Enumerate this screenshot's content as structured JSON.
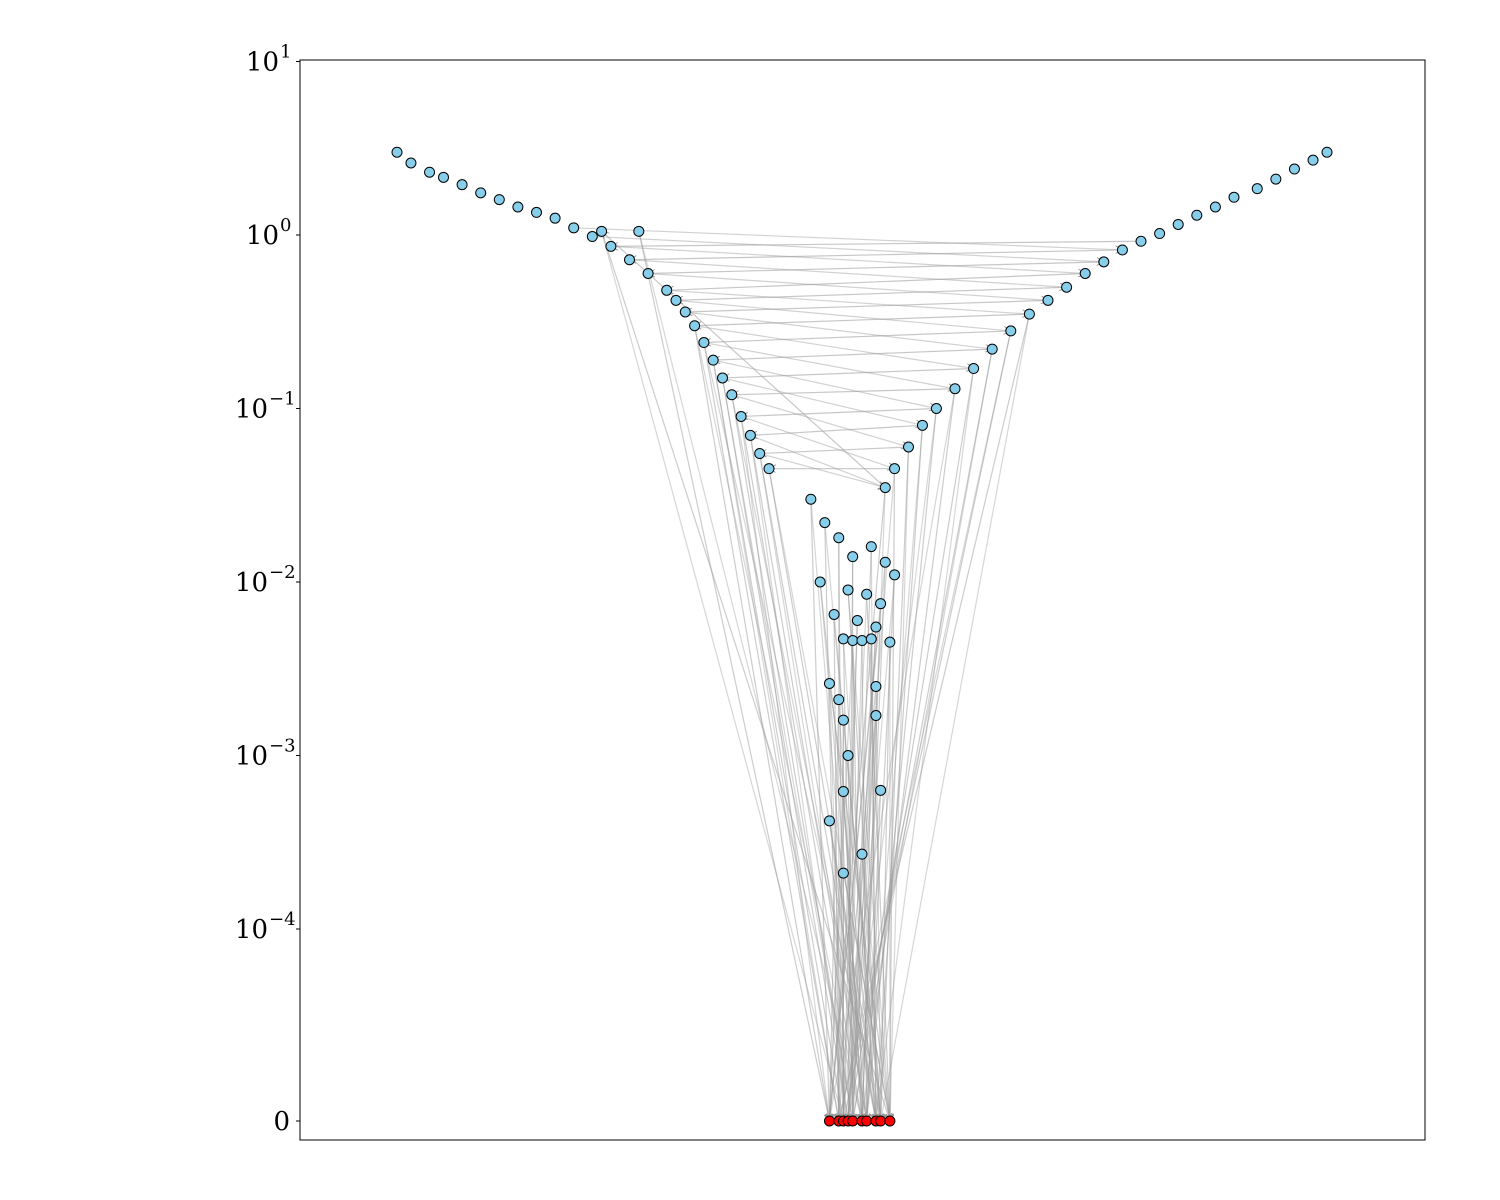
{
  "chart_data": {
    "type": "scatter",
    "title": "",
    "xlabel": "",
    "ylabel": "",
    "yscale": "symlog",
    "ylim": [
      0,
      10
    ],
    "y_ticks": [
      {
        "value": 10,
        "base": "10",
        "exp": "1"
      },
      {
        "value": 1,
        "base": "10",
        "exp": "0"
      },
      {
        "value": 0.1,
        "base": "10",
        "exp": "−1"
      },
      {
        "value": 0.01,
        "base": "10",
        "exp": "−2"
      },
      {
        "value": 0.001,
        "base": "10",
        "exp": "−3"
      },
      {
        "value": 0.0001,
        "base": "10",
        "exp": "−4"
      },
      {
        "value": 0,
        "base": "0",
        "exp": ""
      }
    ],
    "x_ticks_shown": false,
    "grid": false,
    "legend": "none",
    "colors": {
      "nodes": "#87ceeb",
      "terminal_nodes": "#ff0000",
      "edges": "#999999",
      "marker_edge": "#000000"
    },
    "series": [
      {
        "role": "branch-left",
        "points": [
          [
            -1.0,
            3.0
          ],
          [
            -0.97,
            2.6
          ],
          [
            -0.93,
            2.3
          ],
          [
            -0.9,
            2.15
          ],
          [
            -0.86,
            1.95
          ],
          [
            -0.82,
            1.75
          ],
          [
            -0.78,
            1.6
          ],
          [
            -0.74,
            1.45
          ],
          [
            -0.7,
            1.35
          ],
          [
            -0.66,
            1.25
          ],
          [
            -0.62,
            1.1
          ],
          [
            -0.58,
            0.98
          ],
          [
            -0.54,
            0.86
          ],
          [
            -0.5,
            0.72
          ],
          [
            -0.46,
            0.6
          ],
          [
            -0.42,
            0.48
          ],
          [
            -0.4,
            0.42
          ],
          [
            -0.38,
            0.36
          ],
          [
            -0.36,
            0.3
          ],
          [
            -0.34,
            0.24
          ],
          [
            -0.32,
            0.19
          ],
          [
            -0.3,
            0.15
          ],
          [
            -0.28,
            0.12
          ],
          [
            -0.26,
            0.09
          ],
          [
            -0.24,
            0.07
          ],
          [
            -0.22,
            0.055
          ],
          [
            -0.2,
            0.045
          ],
          [
            -0.56,
            1.05
          ],
          [
            -0.48,
            1.05
          ]
        ]
      },
      {
        "role": "branch-right",
        "points": [
          [
            1.0,
            3.0
          ],
          [
            0.97,
            2.7
          ],
          [
            0.93,
            2.4
          ],
          [
            0.89,
            2.1
          ],
          [
            0.85,
            1.85
          ],
          [
            0.8,
            1.65
          ],
          [
            0.76,
            1.45
          ],
          [
            0.72,
            1.3
          ],
          [
            0.68,
            1.15
          ],
          [
            0.64,
            1.02
          ],
          [
            0.6,
            0.92
          ],
          [
            0.56,
            0.82
          ],
          [
            0.52,
            0.7
          ],
          [
            0.48,
            0.6
          ],
          [
            0.44,
            0.5
          ],
          [
            0.4,
            0.42
          ],
          [
            0.36,
            0.35
          ],
          [
            0.32,
            0.28
          ],
          [
            0.28,
            0.22
          ],
          [
            0.24,
            0.17
          ],
          [
            0.2,
            0.13
          ],
          [
            0.16,
            0.1
          ],
          [
            0.13,
            0.08
          ],
          [
            0.1,
            0.06
          ],
          [
            0.07,
            0.045
          ],
          [
            0.05,
            0.035
          ]
        ]
      },
      {
        "role": "funnel",
        "points": [
          [
            -0.11,
            0.03
          ],
          [
            -0.08,
            0.022
          ],
          [
            -0.05,
            0.018
          ],
          [
            -0.02,
            0.014
          ],
          [
            0.02,
            0.016
          ],
          [
            0.05,
            0.013
          ],
          [
            0.07,
            0.011
          ],
          [
            -0.09,
            0.01
          ],
          [
            -0.03,
            0.009
          ],
          [
            0.01,
            0.0085
          ],
          [
            0.04,
            0.0075
          ],
          [
            -0.06,
            0.0065
          ],
          [
            -0.01,
            0.006
          ],
          [
            0.03,
            0.0055
          ],
          [
            -0.04,
            0.0047
          ],
          [
            -0.02,
            0.0046
          ],
          [
            0.0,
            0.0046
          ],
          [
            0.02,
            0.0047
          ],
          [
            0.06,
            0.0045
          ],
          [
            -0.07,
            0.0026
          ],
          [
            -0.05,
            0.0021
          ],
          [
            0.03,
            0.0025
          ],
          [
            -0.04,
            0.0016
          ],
          [
            0.03,
            0.0017
          ],
          [
            -0.03,
            0.001
          ],
          [
            -0.04,
            0.00062
          ],
          [
            0.04,
            0.00063
          ],
          [
            -0.07,
            0.00042
          ],
          [
            0.0,
            0.00027
          ],
          [
            -0.04,
            0.00021
          ]
        ]
      }
    ],
    "terminal_points": [
      [
        -0.07,
        0
      ],
      [
        -0.05,
        0
      ],
      [
        -0.04,
        0
      ],
      [
        -0.03,
        0
      ],
      [
        -0.02,
        0
      ],
      [
        0.0,
        0
      ],
      [
        0.01,
        0
      ],
      [
        0.03,
        0
      ],
      [
        0.04,
        0
      ],
      [
        0.06,
        0
      ]
    ]
  }
}
